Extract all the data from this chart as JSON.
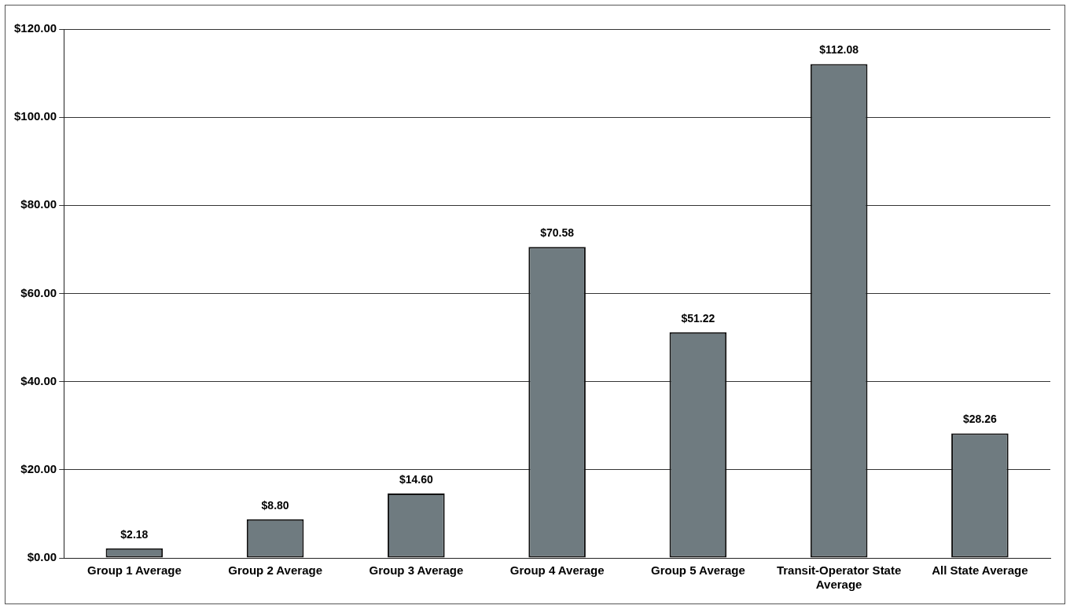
{
  "chart_data": {
    "type": "bar",
    "categories": [
      "Group 1 Average",
      "Group 2 Average",
      "Group 3 Average",
      "Group 4 Average",
      "Group 5 Average",
      "Transit-Operator State Average",
      "All State Average"
    ],
    "values": [
      2.18,
      8.8,
      14.6,
      70.58,
      51.22,
      112.08,
      28.26
    ],
    "value_labels": [
      "$2.18",
      "$8.80",
      "$14.60",
      "$70.58",
      "$51.22",
      "$112.08",
      "$28.26"
    ],
    "color": "#6f7b80",
    "ylim": [
      0,
      120
    ],
    "yticks": [
      {
        "value": 0,
        "label": "$0.00"
      },
      {
        "value": 20,
        "label": "$20.00"
      },
      {
        "value": 40,
        "label": "$40.00"
      },
      {
        "value": 60,
        "label": "$60.00"
      },
      {
        "value": 80,
        "label": "$80.00"
      },
      {
        "value": 100,
        "label": "$100.00"
      },
      {
        "value": 120,
        "label": "$120.00"
      }
    ],
    "grid": "y"
  }
}
